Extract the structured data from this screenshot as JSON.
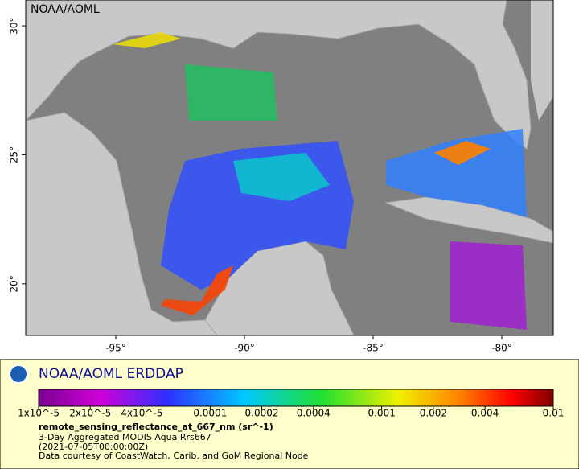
{
  "map": {
    "credit": "NOAA/AOML",
    "xlim": [
      -98.5,
      -78
    ],
    "ylim": [
      18,
      31
    ],
    "xticks": [
      {
        "value": -95,
        "label": "-95°"
      },
      {
        "value": -90,
        "label": "-90°"
      },
      {
        "value": -85,
        "label": "-85°"
      },
      {
        "value": -80,
        "label": "-80°"
      }
    ],
    "yticks": [
      {
        "value": 20,
        "label": "20°"
      },
      {
        "value": 25,
        "label": "25°"
      },
      {
        "value": 30,
        "label": "30°"
      }
    ]
  },
  "legend": {
    "title": "NOAA/AOML ERDDAP",
    "colorbar": {
      "log": true,
      "lim": [
        1e-05,
        0.01
      ],
      "ticks": [
        {
          "value": 1e-05,
          "label": "1x10^-5"
        },
        {
          "value": 2e-05,
          "label": "2x10^-5"
        },
        {
          "value": 4e-05,
          "label": "4x10^-5"
        },
        0.0001,
        0.0002,
        0.0004,
        0.001,
        0.002,
        0.004,
        0.01
      ]
    },
    "variable": "remote_sensing_reflectance_at_667_nm (sr^-1)",
    "lines": [
      "3-Day Aggregated MODIS Aqua Rrs667",
      "(2021-07-05T00:00:00Z)",
      "Data courtesy of CoastWatch, Carib. and GoM Regional Node"
    ]
  }
}
